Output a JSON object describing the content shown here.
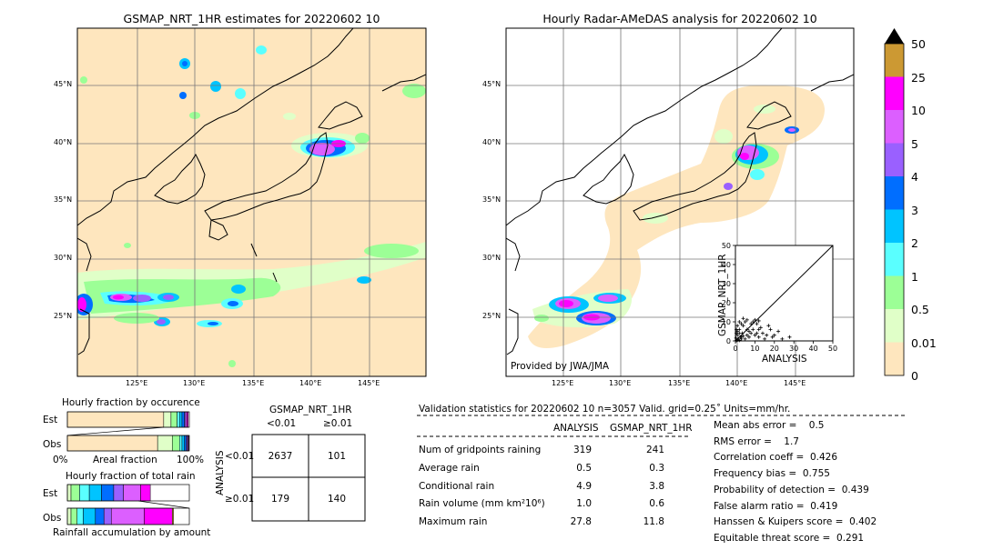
{
  "colors": {
    "ocean": "#fee6be",
    "accent": "#000000",
    "scale": [
      "#fee6be",
      "#e0ffc8",
      "#9cff96",
      "#5affff",
      "#00c4ff",
      "#006eff",
      "#9a60ff",
      "#dc5fff",
      "#ff00ff",
      "#cc9933"
    ]
  },
  "left_map": {
    "title": "GSMAP_NRT_1HR estimates for 20220602 10",
    "lat_labels": [
      "45°N",
      "40°N",
      "35°N",
      "30°N",
      "25°N"
    ],
    "lon_labels": [
      "125°E",
      "130°E",
      "135°E",
      "140°E",
      "145°E"
    ]
  },
  "right_map": {
    "title": "Hourly Radar-AMeDAS analysis for 20220602 10",
    "lat_labels": [
      "45°N",
      "40°N",
      "35°N",
      "30°N",
      "25°N"
    ],
    "lon_labels": [
      "125°E",
      "130°E",
      "135°E",
      "140°E",
      "145°E"
    ],
    "credit": "Provided by JWA/JMA"
  },
  "colorbar": {
    "labels": [
      "50",
      "25",
      "10",
      "5",
      "4",
      "3",
      "2",
      "1",
      "0.5",
      "0.01",
      "0"
    ]
  },
  "occurrence": {
    "title": "Hourly fraction by occurence",
    "rows": [
      "Est",
      "Obs"
    ],
    "axis": [
      "0%",
      "Areal fraction",
      "100%"
    ]
  },
  "total_rain": {
    "title": "Hourly fraction of total rain",
    "rows": [
      "Est",
      "Obs"
    ],
    "caption": "Rainfall accumulation by amount"
  },
  "contingency": {
    "title": "GSMAP_NRT_1HR",
    "col_headers": [
      "<0.01",
      "≥0.01"
    ],
    "row_axis": "ANALYSIS",
    "row_headers": [
      "<0.01",
      "≥0.01"
    ],
    "cells": [
      [
        "2637",
        "101"
      ],
      [
        "179",
        "140"
      ]
    ]
  },
  "validation": {
    "header": "Validation statistics for 20220602 10  n=3057 Valid. grid=0.25˚ Units=mm/hr.",
    "col_headers": [
      "ANALYSIS",
      "GSMAP_NRT_1HR"
    ],
    "rows": [
      {
        "label": "Num of gridpoints raining",
        "a": "319",
        "g": "241"
      },
      {
        "label": "Average rain",
        "a": "0.5",
        "g": "0.3"
      },
      {
        "label": "Conditional rain",
        "a": "4.9",
        "g": "3.8"
      },
      {
        "label": "Rain volume (mm km²10⁶)",
        "a": "1.0",
        "g": "0.6"
      },
      {
        "label": "Maximum rain",
        "a": "27.8",
        "g": "11.8"
      }
    ],
    "scores": [
      "Mean abs error =    0.5",
      "RMS error =    1.7",
      "Correlation coeff =  0.426",
      "Frequency bias =  0.755",
      "Probability of detection =  0.439",
      "False alarm ratio =  0.419",
      "Hanssen & Kuipers score =  0.402",
      "Equitable threat score =  0.291"
    ]
  },
  "chart_data": [
    {
      "type": "bar",
      "title": "Hourly fraction by occurence",
      "categories": [
        "Est",
        "Obs"
      ],
      "series": [
        {
          "values": [
            0.79,
            0.74
          ]
        },
        {
          "values": [
            0.06,
            0.12
          ]
        },
        {
          "values": [
            0.05,
            0.06
          ]
        },
        {
          "values": [
            0.02,
            0.02
          ]
        },
        {
          "values": [
            0.02,
            0.02
          ]
        },
        {
          "values": [
            0.02,
            0.015
          ]
        },
        {
          "values": [
            0.01,
            0.01
          ]
        },
        {
          "values": [
            0.01,
            0.005
          ]
        },
        {
          "values": [
            0.01,
            0.005
          ]
        },
        {
          "values": [
            0.0,
            0.0
          ]
        }
      ],
      "xlabel": "Areal fraction",
      "xlim": [
        0,
        1
      ]
    },
    {
      "type": "bar",
      "title": "Hourly fraction of total rain",
      "categories": [
        "Est",
        "Obs"
      ],
      "series": [
        {
          "values": [
            0.0,
            0.0
          ]
        },
        {
          "values": [
            0.03,
            0.03
          ]
        },
        {
          "values": [
            0.07,
            0.05
          ]
        },
        {
          "values": [
            0.08,
            0.05
          ]
        },
        {
          "values": [
            0.1,
            0.1
          ]
        },
        {
          "values": [
            0.1,
            0.07
          ]
        },
        {
          "values": [
            0.08,
            0.06
          ]
        },
        {
          "values": [
            0.14,
            0.27
          ]
        },
        {
          "values": [
            0.08,
            0.23
          ]
        },
        {
          "values": [
            0.0,
            0.01
          ]
        }
      ],
      "xlabel": "Rainfall accumulation by amount",
      "xlim": [
        0,
        1
      ]
    },
    {
      "type": "scatter",
      "xlabel": "ANALYSIS",
      "ylabel": "GSMAP_NRT_1HR",
      "xlim": [
        0,
        50
      ],
      "ylim": [
        0,
        50
      ],
      "ticks": [
        0,
        10,
        20,
        30,
        40,
        50
      ],
      "points": [
        [
          0.5,
          0.2
        ],
        [
          1,
          0.5
        ],
        [
          1.5,
          1
        ],
        [
          2,
          0.3
        ],
        [
          0.3,
          1.5
        ],
        [
          2.5,
          2
        ],
        [
          3,
          1
        ],
        [
          1,
          3
        ],
        [
          4,
          2.5
        ],
        [
          5,
          1
        ],
        [
          3.5,
          4
        ],
        [
          6,
          3
        ],
        [
          2,
          6
        ],
        [
          7,
          5
        ],
        [
          4,
          8
        ],
        [
          8,
          9
        ],
        [
          9,
          10
        ],
        [
          10,
          11
        ],
        [
          11,
          9
        ],
        [
          12,
          6
        ],
        [
          6,
          11
        ],
        [
          5,
          10
        ],
        [
          3,
          9
        ],
        [
          7,
          2
        ],
        [
          8,
          4
        ],
        [
          10,
          3
        ],
        [
          12,
          2
        ],
        [
          14,
          4
        ],
        [
          16,
          3
        ],
        [
          15,
          1
        ],
        [
          13,
          7
        ],
        [
          9,
          6
        ],
        [
          11,
          4
        ],
        [
          6,
          6
        ],
        [
          1,
          8
        ],
        [
          2,
          10
        ],
        [
          0.5,
          4
        ],
        [
          1,
          5
        ],
        [
          2,
          4
        ],
        [
          3,
          2
        ],
        [
          0.5,
          6
        ],
        [
          18,
          6
        ],
        [
          20,
          3
        ],
        [
          24,
          1
        ],
        [
          27.8,
          2
        ],
        [
          22,
          5
        ],
        [
          19,
          2
        ],
        [
          17,
          8
        ],
        [
          4,
          11.8
        ],
        [
          12,
          10.5
        ]
      ]
    }
  ]
}
